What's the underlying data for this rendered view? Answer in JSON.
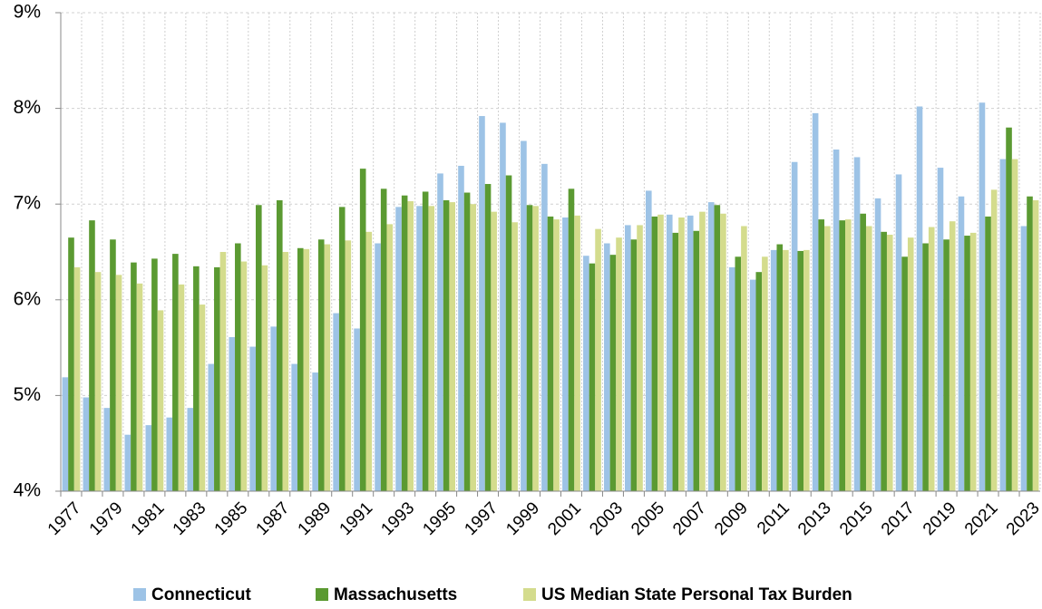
{
  "chart_data": {
    "type": "bar",
    "categories": [
      "1977",
      null,
      "1979",
      null,
      "1981",
      null,
      "1983",
      null,
      "1985",
      null,
      "1987",
      null,
      "1989",
      null,
      "1991",
      null,
      "1993",
      null,
      "1995",
      null,
      "1997",
      null,
      "1999",
      null,
      "2001",
      null,
      "2003",
      null,
      "2005",
      null,
      "2007",
      null,
      "2009",
      null,
      "2011",
      null,
      "2013",
      null,
      "2015",
      null,
      "2017",
      null,
      "2019",
      null,
      "2021",
      null,
      "2023"
    ],
    "series": [
      {
        "name": "Connecticut",
        "color": "#9dc3e6",
        "values": [
          5.19,
          4.98,
          4.87,
          4.59,
          4.69,
          4.77,
          4.87,
          5.33,
          5.61,
          5.51,
          5.72,
          5.33,
          5.24,
          5.86,
          5.7,
          6.59,
          6.97,
          6.98,
          7.32,
          7.4,
          7.92,
          7.85,
          7.66,
          7.42,
          6.86,
          6.46,
          6.59,
          6.78,
          7.14,
          6.89,
          6.88,
          7.02,
          6.34,
          6.21,
          6.52,
          7.44,
          7.95,
          7.57,
          7.49,
          7.06,
          7.31,
          8.02,
          7.38,
          7.08,
          8.06,
          7.47,
          6.77
        ]
      },
      {
        "name": "Massachusetts",
        "color": "#5b9a32",
        "values": [
          6.65,
          6.83,
          6.63,
          6.39,
          6.43,
          6.48,
          6.35,
          6.34,
          6.59,
          6.99,
          7.04,
          6.54,
          6.63,
          6.97,
          7.37,
          7.16,
          7.09,
          7.13,
          7.04,
          7.12,
          7.21,
          7.3,
          6.99,
          6.87,
          7.16,
          6.38,
          6.47,
          6.63,
          6.87,
          6.7,
          6.72,
          6.99,
          6.45,
          6.29,
          6.58,
          6.51,
          6.84,
          6.83,
          6.9,
          6.71,
          6.45,
          6.59,
          6.63,
          6.67,
          6.87,
          7.8,
          7.08
        ]
      },
      {
        "name": "US Median State Personal Tax Burden",
        "color": "#d4dc8d",
        "values": [
          6.34,
          6.29,
          6.26,
          6.17,
          5.89,
          6.16,
          5.95,
          6.5,
          6.4,
          6.36,
          6.5,
          6.53,
          6.58,
          6.62,
          6.71,
          6.79,
          7.03,
          6.98,
          7.02,
          7.0,
          6.92,
          6.81,
          6.98,
          6.84,
          6.88,
          6.74,
          6.65,
          6.78,
          6.89,
          6.86,
          6.92,
          6.9,
          6.77,
          6.45,
          6.52,
          6.52,
          6.77,
          6.84,
          6.77,
          6.68,
          6.65,
          6.76,
          6.82,
          6.7,
          7.15,
          7.47,
          7.04
        ]
      }
    ],
    "ylim": [
      4,
      9
    ],
    "yticks": [
      {
        "value": 4,
        "label": "4%"
      },
      {
        "value": 5,
        "label": "5%"
      },
      {
        "value": 6,
        "label": "6%"
      },
      {
        "value": 7,
        "label": "7%"
      },
      {
        "value": 8,
        "label": "8%"
      },
      {
        "value": 9,
        "label": "9%"
      }
    ],
    "grid": true
  }
}
